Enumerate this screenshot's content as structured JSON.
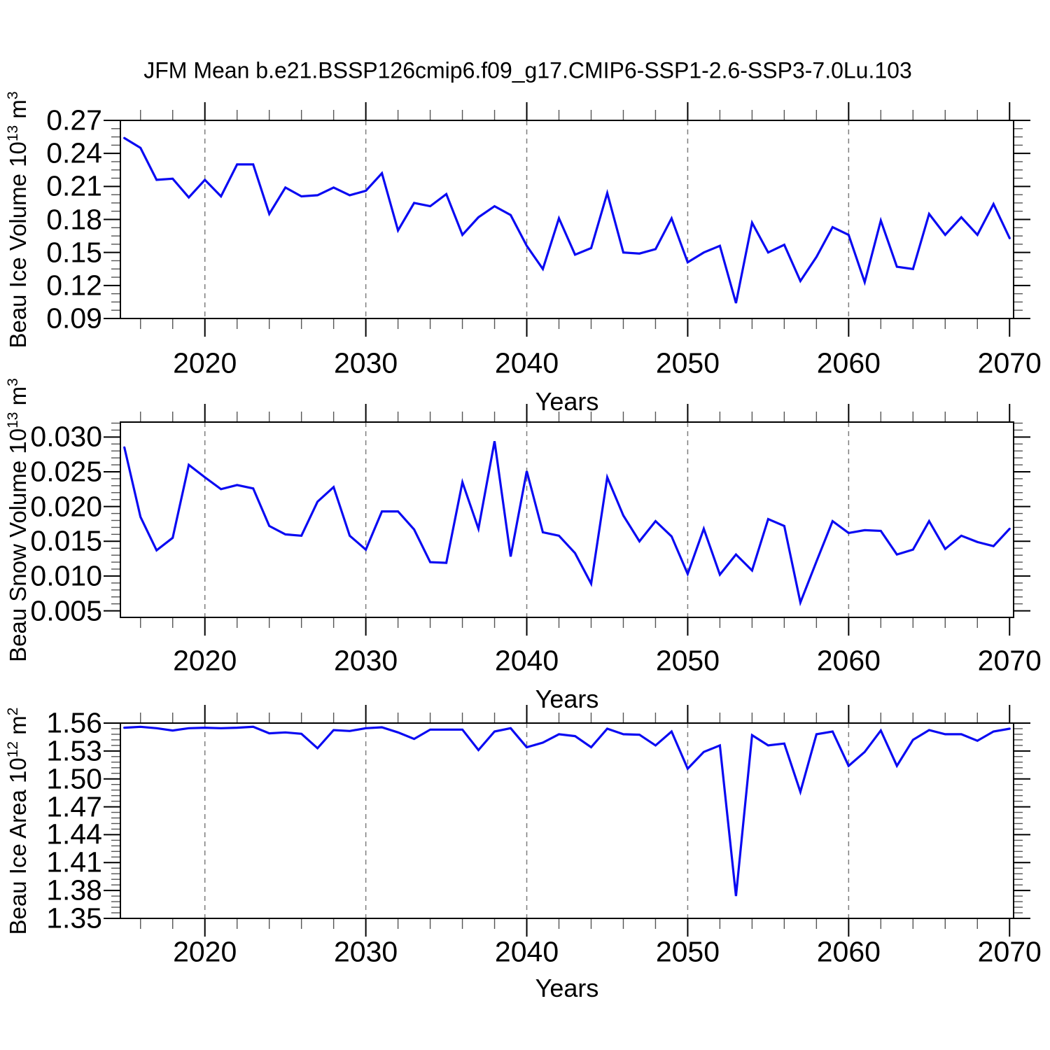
{
  "chart_data": {
    "type": "line",
    "title": "JFM Mean b.e21.BSSP126cmip6.f09_g17.CMIP6-SSP1-2.6-SSP3-7.0Lu.103",
    "legend": "none",
    "grid": "vertical-dashed-at-decades",
    "colors": {
      "line": "#0a0af2",
      "grid": "#7d7d7d",
      "axis": "#000000",
      "background": "#ffffff"
    },
    "x": {
      "label": "Years",
      "min": 2014.75,
      "max": 2070.25,
      "major_ticks": [
        2020,
        2030,
        2040,
        2050,
        2060,
        2070
      ],
      "tick_labels": [
        "2020",
        "2030",
        "2040",
        "2050",
        "2060",
        "2070"
      ],
      "minor_start": 2016,
      "minor_end": 2068,
      "minor_step": 2,
      "grid_years": [
        2020,
        2030,
        2040,
        2050,
        2060
      ],
      "years": [
        2015,
        2016,
        2017,
        2018,
        2019,
        2020,
        2021,
        2022,
        2023,
        2024,
        2025,
        2026,
        2027,
        2028,
        2029,
        2030,
        2031,
        2032,
        2033,
        2034,
        2035,
        2036,
        2037,
        2038,
        2039,
        2040,
        2041,
        2042,
        2043,
        2044,
        2045,
        2046,
        2047,
        2048,
        2049,
        2050,
        2051,
        2052,
        2053,
        2054,
        2055,
        2056,
        2057,
        2058,
        2059,
        2060,
        2061,
        2062,
        2063,
        2064,
        2065,
        2066,
        2067,
        2068,
        2069,
        2070
      ]
    },
    "panels": [
      {
        "ylabel": "Beau Ice Volume 10^13 m^3",
        "ylim": [
          0.09,
          0.27
        ],
        "y_minor_step": 0.0075,
        "y_ticks": {
          "values": [
            0.09,
            0.12,
            0.15,
            0.18,
            0.21,
            0.24,
            0.27
          ],
          "labels": [
            "0.09",
            "0.12",
            "0.15",
            "0.18",
            "0.21",
            "0.24",
            "0.27"
          ]
        },
        "values": [
          0.254,
          0.245,
          0.216,
          0.217,
          0.2,
          0.216,
          0.201,
          0.23,
          0.23,
          0.185,
          0.209,
          0.201,
          0.202,
          0.209,
          0.202,
          0.206,
          0.222,
          0.17,
          0.195,
          0.192,
          0.203,
          0.166,
          0.182,
          0.192,
          0.184,
          0.156,
          0.135,
          0.181,
          0.148,
          0.154,
          0.204,
          0.15,
          0.149,
          0.153,
          0.181,
          0.141,
          0.15,
          0.156,
          0.104,
          0.177,
          0.15,
          0.157,
          0.124,
          0.146,
          0.173,
          0.166,
          0.123,
          0.179,
          0.137,
          0.135,
          0.185,
          0.166,
          0.182,
          0.166,
          0.194,
          0.163
        ]
      },
      {
        "ylabel": "Beau Snow Volume 10^13 m^3",
        "ylim": [
          0.00405,
          0.03215
        ],
        "y_minor_step": 0.001,
        "y_ticks": {
          "values": [
            0.005,
            0.01,
            0.015,
            0.02,
            0.025,
            0.03
          ],
          "labels": [
            "0.005",
            "0.010",
            "0.015",
            "0.020",
            "0.025",
            "0.030"
          ]
        },
        "values": [
          0.0285,
          0.0185,
          0.0137,
          0.0155,
          0.026,
          0.0242,
          0.0225,
          0.0231,
          0.0226,
          0.0172,
          0.016,
          0.0158,
          0.0207,
          0.0228,
          0.0158,
          0.0138,
          0.0193,
          0.0193,
          0.0167,
          0.012,
          0.0119,
          0.0235,
          0.0168,
          0.0294,
          0.0128,
          0.0251,
          0.0163,
          0.0158,
          0.0133,
          0.0089,
          0.0242,
          0.0187,
          0.015,
          0.0179,
          0.0157,
          0.0103,
          0.0168,
          0.0102,
          0.0131,
          0.0108,
          0.0182,
          0.0172,
          0.0062,
          0.0121,
          0.0179,
          0.0162,
          0.0166,
          0.0165,
          0.0131,
          0.0138,
          0.0179,
          0.0139,
          0.0158,
          0.0149,
          0.0143,
          0.0168
        ]
      },
      {
        "ylabel": "Beau Ice Area 10^12 m^2",
        "ylim": [
          1.35,
          1.56
        ],
        "y_minor_step": 0.006,
        "y_ticks": {
          "values": [
            1.35,
            1.38,
            1.41,
            1.44,
            1.47,
            1.5,
            1.53,
            1.56
          ],
          "labels": [
            "1.35",
            "1.38",
            "1.41",
            "1.44",
            "1.47",
            "1.50",
            "1.53",
            "1.56"
          ]
        },
        "values": [
          1.555,
          1.556,
          1.5545,
          1.552,
          1.5545,
          1.555,
          1.5545,
          1.555,
          1.556,
          1.549,
          1.55,
          1.5485,
          1.533,
          1.5525,
          1.5515,
          1.5545,
          1.5555,
          1.55,
          1.543,
          1.553,
          1.553,
          1.553,
          1.531,
          1.551,
          1.5545,
          1.534,
          1.539,
          1.548,
          1.546,
          1.534,
          1.554,
          1.548,
          1.5475,
          1.536,
          1.551,
          1.511,
          1.529,
          1.536,
          1.374,
          1.547,
          1.536,
          1.538,
          1.486,
          1.548,
          1.551,
          1.514,
          1.529,
          1.552,
          1.514,
          1.542,
          1.5525,
          1.548,
          1.548,
          1.541,
          1.551,
          1.554
        ]
      }
    ]
  }
}
